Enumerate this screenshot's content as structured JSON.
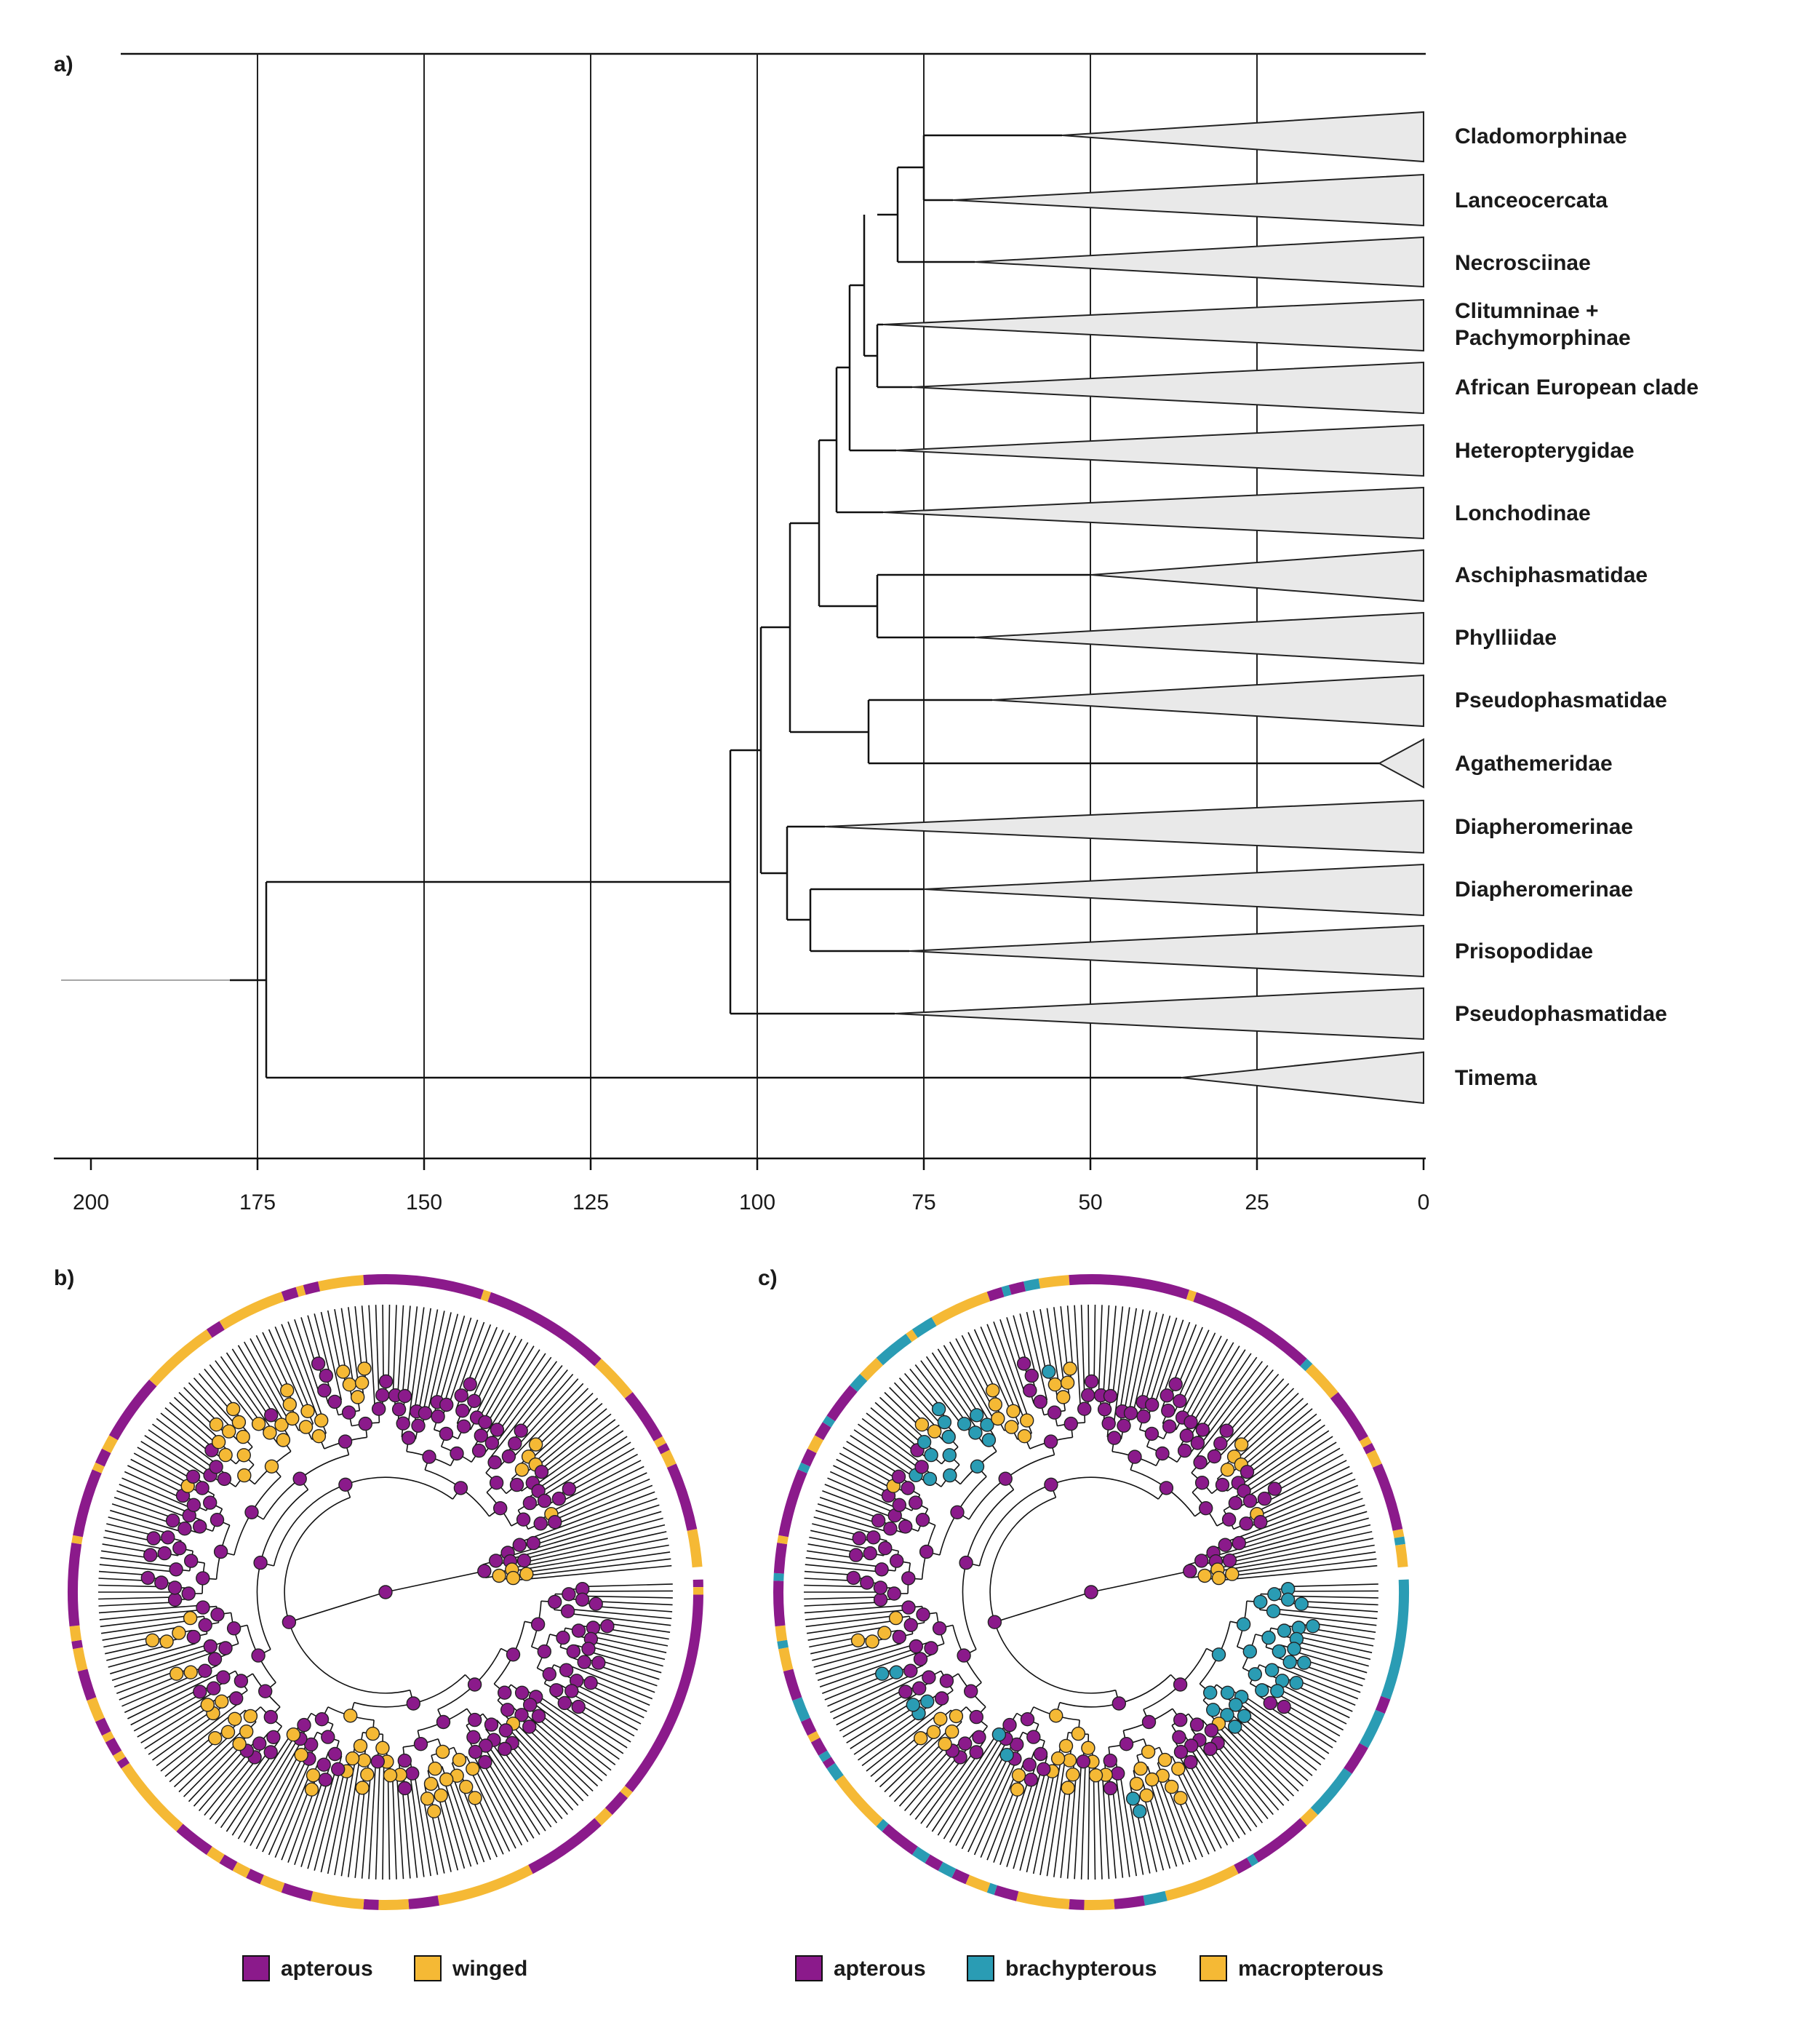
{
  "panel_a": {
    "label": "a)",
    "axis": {
      "ticks": [
        "200",
        "175",
        "150",
        "125",
        "100",
        "75",
        "50",
        "25",
        "0"
      ]
    },
    "clades": [
      {
        "name": "Cladomorphinae",
        "lines": [
          "Cladomorphinae"
        ]
      },
      {
        "name": "Lanceocercata",
        "lines": [
          "Lanceocercata"
        ]
      },
      {
        "name": "Necrosciinae",
        "lines": [
          "Necrosciinae"
        ]
      },
      {
        "name": "Clitumninae + Pachymorphinae",
        "lines": [
          "Clitumninae +",
          "Pachymorphinae"
        ]
      },
      {
        "name": "African European clade",
        "lines": [
          "African European clade"
        ]
      },
      {
        "name": "Heteropterygidae",
        "lines": [
          "Heteropterygidae"
        ]
      },
      {
        "name": "Lonchodinae",
        "lines": [
          "Lonchodinae"
        ]
      },
      {
        "name": "Aschiphasmatidae",
        "lines": [
          "Aschiphasmatidae"
        ]
      },
      {
        "name": "Phylliidae",
        "lines": [
          "Phylliidae"
        ]
      },
      {
        "name": "Pseudophasmatidae",
        "lines": [
          "Pseudophasmatidae"
        ]
      },
      {
        "name": "Agathemeridae",
        "lines": [
          "Agathemeridae"
        ]
      },
      {
        "name": "Diapheromerinae",
        "lines": [
          "Diapheromerinae"
        ]
      },
      {
        "name": "Diapheromerinae",
        "lines": [
          "Diapheromerinae"
        ]
      },
      {
        "name": "Prisopodidae",
        "lines": [
          "Prisopodidae"
        ]
      },
      {
        "name": "Pseudophasmatidae",
        "lines": [
          "Pseudophasmatidae"
        ]
      },
      {
        "name": "Timema",
        "lines": [
          "Timema"
        ]
      }
    ]
  },
  "panel_b": {
    "label": "b)",
    "legend": [
      {
        "label": "apterous",
        "color": "#8b1a8b"
      },
      {
        "label": "winged",
        "color": "#f5b935"
      }
    ]
  },
  "panel_c": {
    "label": "c)",
    "legend": [
      {
        "label": "apterous",
        "color": "#8b1a8b"
      },
      {
        "label": "brachypterous",
        "color": "#2a9cb4"
      },
      {
        "label": "macropterous",
        "color": "#f5b935"
      }
    ]
  },
  "colors": {
    "apterous": "#8b1a8b",
    "winged": "#f5b935",
    "brachypterous": "#2a9cb4",
    "clade_fill": "#e9e9e9",
    "line": "#111111"
  }
}
